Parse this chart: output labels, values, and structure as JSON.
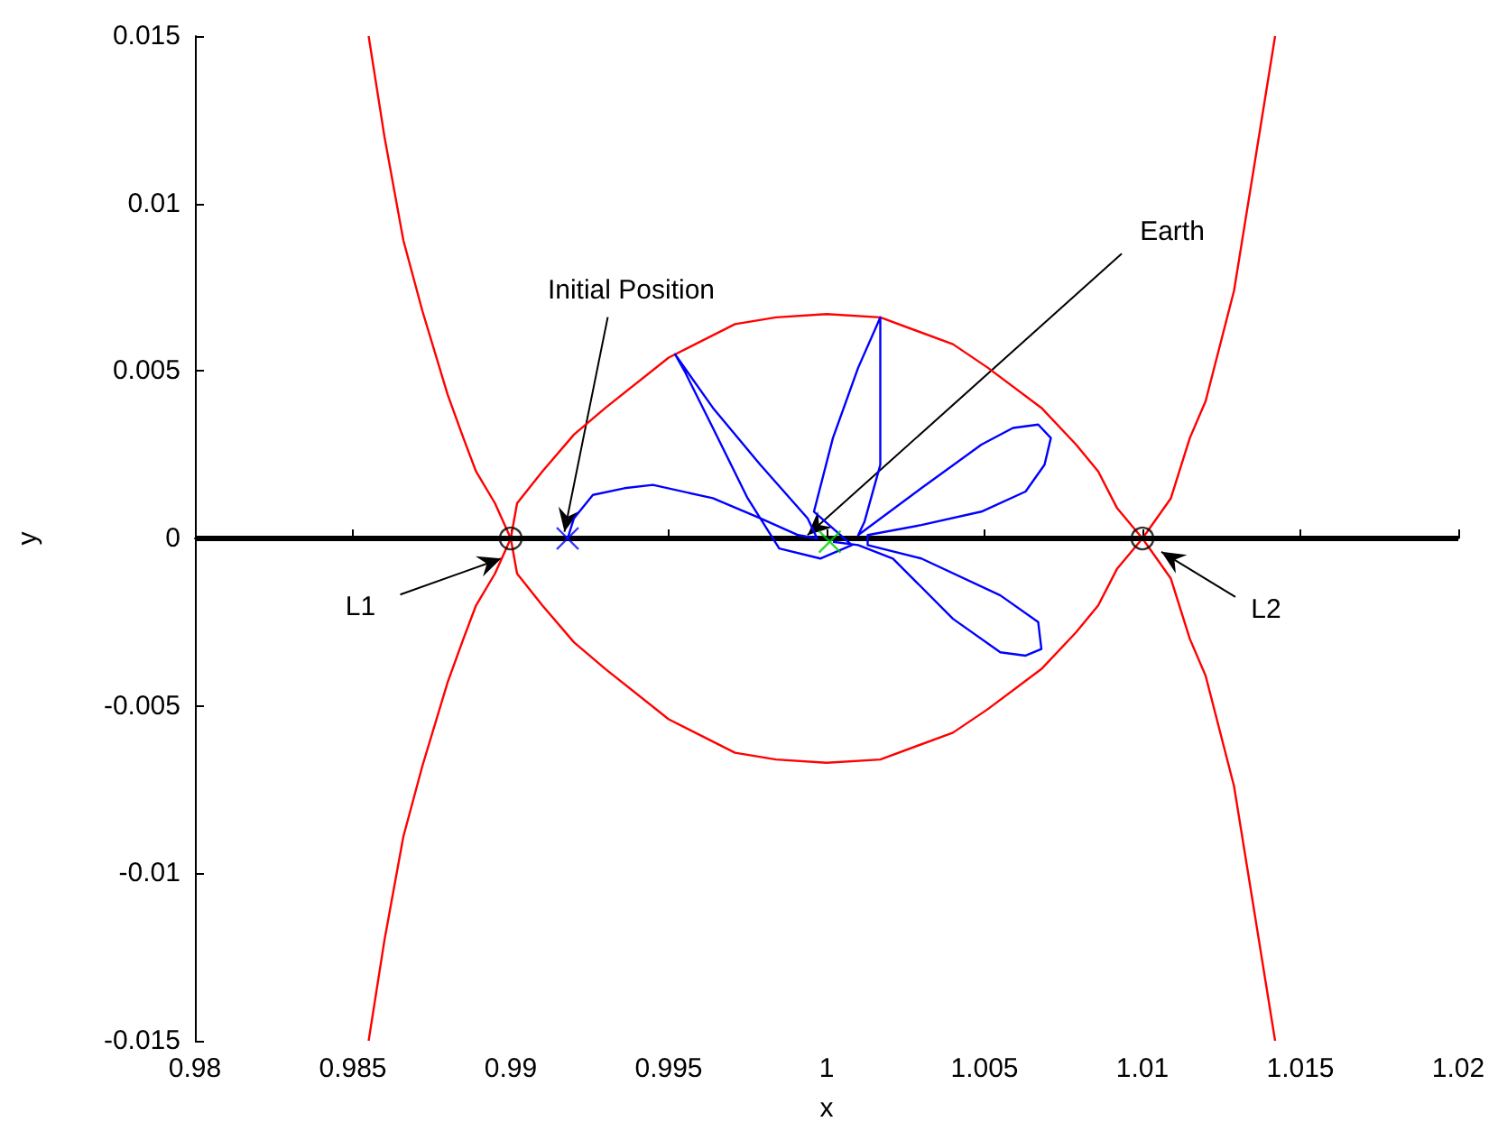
{
  "chart_data": {
    "type": "line",
    "xlabel": "x",
    "ylabel": "y",
    "xlim": [
      0.98,
      1.02
    ],
    "xticks": [
      0.98,
      0.985,
      0.99,
      0.995,
      1,
      1.005,
      1.01,
      1.015,
      1.02
    ],
    "ylim": [
      -0.015,
      0.015
    ],
    "yticks": [
      -0.015,
      -0.01,
      -0.005,
      0,
      0.005,
      0.01,
      0.015
    ],
    "grid": false,
    "marker": "none",
    "line_style": "solid",
    "ref_lines": [
      {
        "axis": "y",
        "value": 0,
        "color": "#000000"
      }
    ],
    "series": [
      {
        "color": "#ff0000",
        "x": [
          0.9855,
          0.986,
          0.9866,
          0.9872,
          0.988,
          0.9885,
          0.9889,
          0.9895,
          0.99,
          0.9902,
          0.991,
          0.992,
          0.993,
          0.995,
          0.9971,
          0.9984,
          1,
          1.0017,
          1.004,
          1.0051,
          1.0068,
          1.0079,
          1.0086,
          1.0092,
          1.01,
          1.0109,
          1.0115,
          1.012,
          1.0129,
          1.0135,
          1.0142
        ],
        "values": [
          0.015,
          0.012,
          0.0089,
          0.0068,
          0.0043,
          0.003,
          0.002,
          0.00105,
          0,
          -0.00105,
          -0.002,
          -0.0031,
          -0.0039,
          -0.0054,
          -0.0064,
          -0.0066,
          -0.0067,
          -0.0066,
          -0.0058,
          -0.0051,
          -0.0039,
          -0.0028,
          -0.002,
          -0.0009,
          0,
          0.0012,
          0.003,
          0.0041,
          0.0074,
          0.0109,
          0.015
        ]
      },
      {
        "color": "#ff0000",
        "x": [
          0.9855,
          0.986,
          0.9866,
          0.9872,
          0.988,
          0.9885,
          0.9889,
          0.9895,
          0.99,
          0.9902,
          0.991,
          0.992,
          0.993,
          0.995,
          0.9971,
          0.9984,
          1,
          1.0017,
          1.004,
          1.0051,
          1.0068,
          1.0079,
          1.0086,
          1.0092,
          1.01,
          1.0109,
          1.0115,
          1.012,
          1.0129,
          1.0135,
          1.0142
        ],
        "values": [
          -0.015,
          -0.012,
          -0.0089,
          -0.0068,
          -0.0043,
          -0.003,
          -0.002,
          -0.00105,
          0,
          0.00105,
          0.002,
          0.0031,
          0.0039,
          0.0054,
          0.0064,
          0.0066,
          0.0067,
          0.0066,
          0.0058,
          0.0051,
          0.0039,
          0.0028,
          0.002,
          0.0009,
          0,
          -0.0012,
          -0.003,
          -0.0041,
          -0.0074,
          -0.0109,
          -0.015
        ]
      },
      {
        "color": "#0000ff",
        "x": [
          0.9918,
          0.992,
          0.9926,
          0.9936,
          0.9945,
          0.9964,
          0.9979,
          0.9991,
          0.9997,
          0.9994,
          0.9979,
          0.9964,
          0.9952,
          0.9955,
          0.9964,
          0.9975,
          0.9985,
          0.9998,
          1.0008,
          1.0002,
          0.9996,
          1.0002,
          1.001,
          1.0017,
          1.0017,
          1.0012,
          1.001,
          1.003,
          1.0049,
          1.0059,
          1.0067,
          1.0071,
          1.0069,
          1.0063,
          1.0049,
          1.003,
          1.0013,
          1.0013,
          1.003,
          1.0055,
          1.0067,
          1.0068,
          1.0063,
          1.0055,
          1.004,
          1.0021,
          1.001,
          1.0002
        ],
        "values": [
          0,
          0.0006,
          0.0013,
          0.0015,
          0.0016,
          0.0012,
          0.0006,
          0.0001,
          0,
          0.0006,
          0.0022,
          0.0039,
          0.0055,
          0.005,
          0.0033,
          0.0012,
          -0.0003,
          -0.0006,
          -0.0002,
          0.0003,
          0.0008,
          0.003,
          0.0051,
          0.0066,
          0.0022,
          0.0005,
          0.0001,
          0.0015,
          0.0028,
          0.0033,
          0.0034,
          0.003,
          0.0022,
          0.0014,
          0.0008,
          0.0004,
          0.0001,
          -0.0002,
          -0.0006,
          -0.0017,
          -0.0025,
          -0.0033,
          -0.0035,
          -0.0034,
          -0.0024,
          -0.0006,
          -0.0002,
          -0.0001
        ]
      },
      {
        "type": "scatter",
        "color": "#0000ff",
        "marker": "cross",
        "x": [
          0.9918
        ],
        "values": [
          0
        ]
      },
      {
        "type": "scatter",
        "color": "#00cc00",
        "marker": "cross",
        "x": [
          1.0001
        ],
        "values": [
          -0.0001
        ]
      },
      {
        "type": "scatter",
        "color": "#000000",
        "marker": "circle",
        "x": [
          0.99,
          1.01
        ],
        "values": [
          0,
          0
        ]
      }
    ],
    "annotations": [
      {
        "text": "Initial Position",
        "x": 0.9917,
        "y": 0.0002
      },
      {
        "text": "Earth",
        "x": 0.9994,
        "y": 0.0001
      },
      {
        "text": "L1",
        "x": 0.9897,
        "y": -0.0006
      },
      {
        "text": "L2",
        "x": 1.0106,
        "y": -0.0004
      }
    ]
  }
}
